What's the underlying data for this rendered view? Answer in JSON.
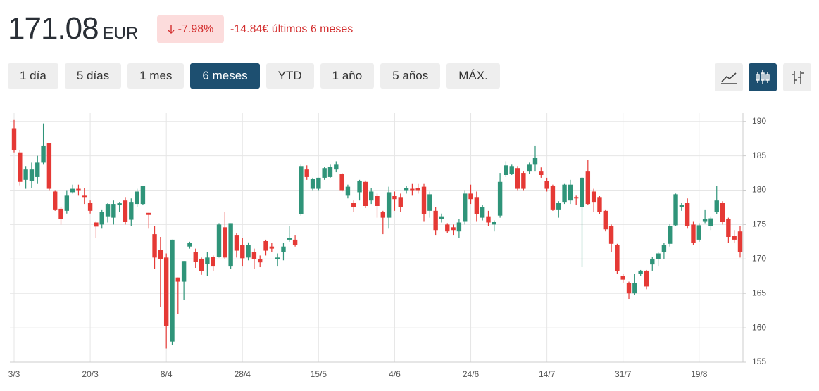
{
  "header": {
    "price": "171.08",
    "currency": "EUR",
    "change_percent": "-7.98%",
    "change_text": "-14.84€ últimos 6 meses"
  },
  "ranges": {
    "labels": [
      "1 día",
      "5 días",
      "1 mes",
      "6 meses",
      "YTD",
      "1 año",
      "5 años",
      "MÁX."
    ],
    "active": 3
  },
  "chart_data": {
    "type": "candlestick",
    "up_color": "#2f9479",
    "down_color": "#e53935",
    "grid": true,
    "categories": [
      "3/3",
      null,
      null,
      null,
      null,
      null,
      null,
      null,
      null,
      null,
      null,
      null,
      null,
      "20/3",
      null,
      null,
      null,
      null,
      null,
      null,
      null,
      null,
      null,
      null,
      null,
      null,
      "8/4",
      null,
      null,
      null,
      null,
      null,
      null,
      null,
      null,
      null,
      null,
      null,
      null,
      "28/4",
      null,
      null,
      null,
      null,
      null,
      null,
      null,
      null,
      null,
      null,
      null,
      null,
      "15/5",
      null,
      null,
      null,
      null,
      null,
      null,
      null,
      null,
      null,
      null,
      null,
      null,
      "4/6",
      null,
      null,
      null,
      null,
      null,
      null,
      null,
      null,
      null,
      null,
      null,
      null,
      "24/6",
      null,
      null,
      null,
      null,
      null,
      null,
      null,
      null,
      null,
      null,
      null,
      null,
      "14/7",
      null,
      null,
      null,
      null,
      null,
      null,
      null,
      null,
      null,
      null,
      null,
      null,
      "31/7",
      null,
      null,
      null,
      null,
      null,
      null,
      null,
      null,
      null,
      null,
      null,
      null,
      "19/8",
      null,
      null,
      null,
      null,
      null,
      null,
      null
    ],
    "open": [
      189,
      185.5,
      181.5,
      181.3,
      182,
      184,
      186.8,
      179.8,
      177.3,
      177,
      179.7,
      180.2,
      179.3,
      178.2,
      175.3,
      175,
      176.2,
      176,
      177.8,
      178.5,
      175.7,
      178,
      178,
      176.7,
      173.6,
      171.3,
      170.2,
      158,
      167.3,
      166.7,
      171.8,
      171,
      170,
      169.3,
      170.3,
      170.3,
      174.6,
      169,
      173.5,
      172,
      170.2,
      171,
      170,
      172.6,
      171.8,
      170,
      171,
      172.8,
      172.8,
      176.5,
      183,
      180.2,
      180.2,
      181.8,
      182,
      183,
      182.3,
      179.3,
      178.2,
      179.7,
      181.2,
      178.5,
      179.2,
      176.8,
      176,
      179.2,
      179,
      180,
      180.2,
      180.3,
      180.5,
      177,
      177,
      175.8,
      175,
      174.6,
      174,
      175.5,
      179.5,
      179,
      176,
      176.2,
      175,
      176.3,
      182.2,
      182.4,
      183.2,
      182.5,
      182.8,
      183.8,
      182.8,
      181.3,
      180.6,
      177.2,
      178.3,
      178.5,
      179,
      177.5,
      182.8,
      179.8,
      179,
      177,
      174.8,
      172,
      167.5,
      166.5,
      165,
      167.8,
      168.3,
      169.2,
      170,
      171,
      172.2,
      174.9,
      177.6,
      178.2,
      175,
      172.8,
      175.5,
      174.8,
      176.8,
      178.2,
      175.8,
      173.4,
      174
    ],
    "high": [
      190.3,
      185.8,
      183.5,
      184,
      185,
      189.7,
      186.8,
      180,
      177.5,
      180,
      180.8,
      180.8,
      180.3,
      178.5,
      175.5,
      177.2,
      178.2,
      178.5,
      178.3,
      179,
      178.8,
      180.2,
      180.6,
      176.7,
      174.8,
      173.2,
      170.8,
      172.8,
      167.3,
      169.7,
      172.5,
      171.5,
      170.2,
      171,
      170.5,
      175.2,
      176.8,
      175.2,
      173.8,
      173,
      172.4,
      171.5,
      170.5,
      172.8,
      172.3,
      170.8,
      172.3,
      174.8,
      173.5,
      183.8,
      183.6,
      181.8,
      181.8,
      183.4,
      183.8,
      184.2,
      182.5,
      180.8,
      178.5,
      181.5,
      181.4,
      180.3,
      179.5,
      177,
      180.5,
      179.8,
      179.5,
      180.6,
      181,
      181,
      181,
      179.8,
      177.5,
      176.6,
      175.2,
      175,
      175.8,
      180,
      180.8,
      179.8,
      177.8,
      177,
      175.6,
      182.5,
      184.2,
      183.8,
      183.5,
      182.8,
      184,
      186.5,
      183.3,
      181.8,
      180.8,
      178.4,
      181,
      181.5,
      179.3,
      182,
      184.4,
      180.2,
      179.2,
      177.2,
      175,
      172.2,
      167.8,
      166.7,
      167.8,
      168.4,
      168.4,
      170.3,
      171,
      172.3,
      175.1,
      179.5,
      178.2,
      178.8,
      175.5,
      175.2,
      177.2,
      176.2,
      180.6,
      178.4,
      176,
      174.2,
      174.8
    ],
    "low": [
      185.5,
      180.7,
      180.2,
      180.3,
      181,
      183.8,
      180,
      177,
      175,
      176.6,
      179.5,
      179.3,
      178,
      176.6,
      173,
      174.5,
      175.3,
      175,
      176.8,
      175,
      174.8,
      177.6,
      177.8,
      174.5,
      168.5,
      163,
      157,
      157.5,
      162,
      164,
      171.5,
      168.7,
      167.7,
      167.5,
      168.2,
      170.2,
      170,
      168.5,
      170.2,
      169,
      169.8,
      168.5,
      168.8,
      170.5,
      171,
      169,
      169.8,
      172.5,
      171.8,
      176.3,
      181.5,
      180,
      180,
      181.5,
      181.8,
      182.6,
      179.8,
      178.8,
      176.8,
      178.5,
      177.4,
      178,
      176,
      173.6,
      174.5,
      177,
      176.8,
      179.5,
      179.3,
      179.5,
      175.5,
      176,
      173.5,
      175.3,
      173.8,
      173.5,
      173,
      175,
      178,
      175.5,
      175.6,
      174.8,
      174,
      176,
      182,
      182.2,
      180,
      180,
      182.4,
      182.8,
      181.8,
      179.8,
      177,
      176,
      178,
      178,
      177.8,
      168.8,
      177.8,
      176.8,
      176.5,
      174,
      171,
      167.8,
      166.5,
      164.2,
      164.8,
      167.5,
      165.6,
      168.3,
      169,
      170,
      171.8,
      174.8,
      177,
      174.5,
      172,
      172.5,
      175.2,
      174.2,
      176.5,
      175,
      172.3,
      172.3,
      170.2
    ],
    "close": [
      185.8,
      181.2,
      183,
      183,
      184,
      186.5,
      180.2,
      177.2,
      175.8,
      179.3,
      180.2,
      180,
      179,
      177,
      174.7,
      176.8,
      178,
      178,
      178.1,
      175.4,
      178.3,
      179.8,
      180.6,
      176.4,
      170.2,
      170,
      160.3,
      172.8,
      166.7,
      169.7,
      172.3,
      169.6,
      168.2,
      170.2,
      169,
      175,
      170.2,
      175.2,
      171.2,
      170.1,
      172,
      170,
      169.5,
      171.2,
      171.5,
      170.2,
      171.8,
      173,
      172,
      183.5,
      182,
      181.6,
      181.8,
      183.2,
      183.4,
      183.8,
      180,
      180.5,
      177.5,
      181.3,
      177.7,
      179.8,
      177.7,
      176,
      179.7,
      178.7,
      177.5,
      180.3,
      180,
      180,
      176.5,
      179.4,
      174.2,
      176.2,
      174,
      174.2,
      175.3,
      179.5,
      178.7,
      176.5,
      177.5,
      175.3,
      175.4,
      181.2,
      183.6,
      183.5,
      180.2,
      180.2,
      183.8,
      184.7,
      182.2,
      180.2,
      177.2,
      178.2,
      180.8,
      180.8,
      178.8,
      181.8,
      178,
      178.3,
      176.8,
      174.3,
      172.2,
      168.2,
      167,
      165,
      166.5,
      168.3,
      166,
      170,
      170.8,
      172,
      174.8,
      179.4,
      177.8,
      174.8,
      172.3,
      174.9,
      175.8,
      175.9,
      178.5,
      175.4,
      173.2,
      172.8,
      171
    ],
    "ylim": [
      155,
      191.3
    ],
    "yticks": [
      155,
      160,
      165,
      170,
      175,
      180,
      185,
      190
    ]
  }
}
